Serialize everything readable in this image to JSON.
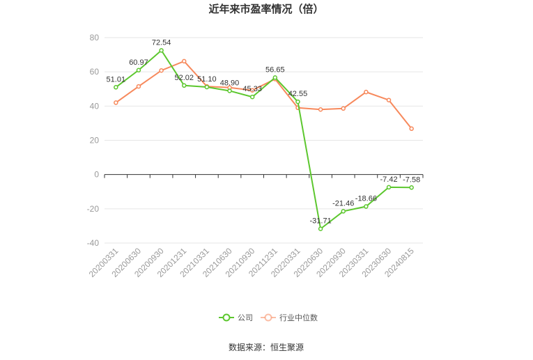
{
  "chart_data": {
    "type": "line",
    "title": "近年来市盈率情况（倍）",
    "x": [
      "20200331",
      "20200630",
      "20200930",
      "20201231",
      "20210331",
      "20210630",
      "20210930",
      "20211231",
      "20220331",
      "20220630",
      "20220930",
      "20230331",
      "20230630",
      "20240815"
    ],
    "ylim": [
      -40,
      80
    ],
    "yticks": [
      -40,
      -20,
      0,
      20,
      40,
      60,
      80
    ],
    "grid": true,
    "legend_position": "bottom",
    "series": [
      {
        "name": "公司",
        "color": "#5cc72e",
        "values": [
          51.01,
          60.97,
          72.54,
          52.02,
          51.1,
          48.9,
          45.33,
          56.65,
          42.55,
          -31.71,
          -21.46,
          -18.66,
          -7.42,
          -7.58
        ],
        "labels": [
          "51.01",
          "60.97",
          "72.54",
          "52.02",
          "51.10",
          "48.90",
          "45.33",
          "56.65",
          "42.55",
          "-31.71",
          "-21.46",
          "-18.66",
          "-7.42",
          "-7.58"
        ]
      },
      {
        "name": "行业中位数",
        "color": "#f7895c",
        "values": [
          42.0,
          51.5,
          60.8,
          66.2,
          51.5,
          50.8,
          49.2,
          55.8,
          39.0,
          38.0,
          38.6,
          48.2,
          43.5,
          26.8
        ]
      }
    ]
  },
  "footer": {
    "source": "数据来源：恒生聚源"
  }
}
